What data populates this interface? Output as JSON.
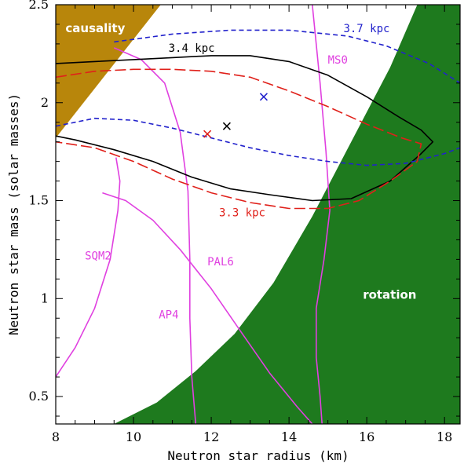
{
  "chart_data": {
    "type": "line",
    "title": "",
    "xlabel": "Neutron star radius (km)",
    "ylabel": "Neutron star mass (solar masses)",
    "xlim": [
      8,
      18.4
    ],
    "ylim": [
      0.36,
      2.5
    ],
    "xticks": [
      "8",
      "10",
      "12",
      "14",
      "16",
      "18"
    ],
    "yticks": [
      "0.5",
      "1",
      "1.5",
      "2",
      "2.5"
    ],
    "xtick_values": [
      8,
      10,
      12,
      14,
      16,
      18
    ],
    "ytick_values": [
      0.5,
      1,
      1.5,
      2,
      2.5
    ],
    "regions": [
      {
        "name": "causality",
        "color": "#b8860b",
        "polygon": [
          [
            8,
            1.82
          ],
          [
            10.7,
            2.5
          ],
          [
            8,
            2.5
          ]
        ]
      },
      {
        "name": "rotation",
        "color": "#1e7a1e",
        "polygon": [
          [
            9.5,
            0.36
          ],
          [
            10.6,
            0.47
          ],
          [
            11.6,
            0.63
          ],
          [
            12.6,
            0.82
          ],
          [
            13.6,
            1.08
          ],
          [
            14.6,
            1.42
          ],
          [
            15.6,
            1.8
          ],
          [
            16.6,
            2.18
          ],
          [
            17.3,
            2.5
          ],
          [
            18.4,
            2.5
          ],
          [
            18.4,
            0.36
          ]
        ]
      }
    ],
    "region_labels": [
      "causality",
      "rotation"
    ],
    "confidence_contours": [
      {
        "name": "3.4 kpc",
        "color": "#000000",
        "dash": "solid",
        "points": [
          [
            8,
            2.2
          ],
          [
            9,
            2.21
          ],
          [
            10,
            2.22
          ],
          [
            11,
            2.23
          ],
          [
            12,
            2.24
          ],
          [
            13,
            2.24
          ],
          [
            14,
            2.21
          ],
          [
            15,
            2.14
          ],
          [
            16,
            2.03
          ],
          [
            16.8,
            1.93
          ],
          [
            17.4,
            1.86
          ],
          [
            17.7,
            1.8
          ],
          [
            17.4,
            1.74
          ],
          [
            16.6,
            1.6
          ],
          [
            15.6,
            1.51
          ],
          [
            14.6,
            1.5
          ],
          [
            13.5,
            1.53
          ],
          [
            12.5,
            1.56
          ],
          [
            11.5,
            1.62
          ],
          [
            10.5,
            1.7
          ],
          [
            9.5,
            1.76
          ],
          [
            8.5,
            1.81
          ],
          [
            8,
            1.83
          ]
        ]
      },
      {
        "name": "3.3 kpc",
        "color": "#e0201a",
        "dash": "longdash",
        "points": [
          [
            8,
            2.13
          ],
          [
            9,
            2.16
          ],
          [
            10,
            2.17
          ],
          [
            11,
            2.17
          ],
          [
            12,
            2.16
          ],
          [
            13,
            2.13
          ],
          [
            14,
            2.06
          ],
          [
            15,
            1.98
          ],
          [
            16,
            1.89
          ],
          [
            16.9,
            1.82
          ],
          [
            17.4,
            1.79
          ],
          [
            17.3,
            1.7
          ],
          [
            16.6,
            1.6
          ],
          [
            15.8,
            1.5
          ],
          [
            15,
            1.46
          ],
          [
            14,
            1.46
          ],
          [
            13,
            1.49
          ],
          [
            12,
            1.54
          ],
          [
            11,
            1.61
          ],
          [
            10,
            1.7
          ],
          [
            9,
            1.77
          ],
          [
            8,
            1.8
          ]
        ]
      },
      {
        "name": "3.7 kpc",
        "color": "#2222cc",
        "dash": "shortdash",
        "points": [
          [
            9.5,
            2.31
          ],
          [
            11,
            2.35
          ],
          [
            12.5,
            2.37
          ],
          [
            14,
            2.37
          ],
          [
            15.5,
            2.34
          ],
          [
            16.5,
            2.29
          ],
          [
            17.6,
            2.2
          ],
          [
            18.4,
            2.1
          ],
          null,
          [
            8,
            1.88
          ],
          [
            9,
            1.92
          ],
          [
            10,
            1.91
          ],
          [
            11,
            1.87
          ],
          [
            12,
            1.82
          ],
          [
            13,
            1.77
          ],
          [
            14,
            1.73
          ],
          [
            15,
            1.7
          ],
          [
            16,
            1.68
          ],
          [
            17,
            1.69
          ],
          [
            18,
            1.74
          ],
          [
            18.4,
            1.77
          ]
        ]
      }
    ],
    "equations_of_state": [
      {
        "name": "SQM2",
        "color": "#e040e0",
        "points": [
          [
            8,
            0.6
          ],
          [
            8.5,
            0.75
          ],
          [
            9,
            0.95
          ],
          [
            9.4,
            1.2
          ],
          [
            9.6,
            1.45
          ],
          [
            9.65,
            1.6
          ],
          [
            9.55,
            1.72
          ]
        ]
      },
      {
        "name": "PAL6",
        "color": "#e040e0",
        "points": [
          [
            9.2,
            1.54
          ],
          [
            9.8,
            1.5
          ],
          [
            10.5,
            1.4
          ],
          [
            11.2,
            1.25
          ],
          [
            12,
            1.05
          ],
          [
            12.8,
            0.82
          ],
          [
            13.5,
            0.62
          ],
          [
            14.2,
            0.45
          ],
          [
            14.6,
            0.36
          ]
        ]
      },
      {
        "name": "AP4",
        "color": "#e040e0",
        "points": [
          [
            9.5,
            2.28
          ],
          [
            10.2,
            2.22
          ],
          [
            10.8,
            2.1
          ],
          [
            11.2,
            1.85
          ],
          [
            11.4,
            1.55
          ],
          [
            11.45,
            1.2
          ],
          [
            11.45,
            0.9
          ],
          [
            11.5,
            0.6
          ],
          [
            11.6,
            0.36
          ]
        ]
      },
      {
        "name": "MS0",
        "color": "#e040e0",
        "points": [
          [
            14.6,
            2.5
          ],
          [
            14.8,
            2.1
          ],
          [
            14.95,
            1.75
          ],
          [
            15.05,
            1.45
          ],
          [
            14.9,
            1.2
          ],
          [
            14.7,
            0.95
          ],
          [
            14.7,
            0.7
          ],
          [
            14.8,
            0.5
          ],
          [
            14.85,
            0.36
          ]
        ]
      }
    ],
    "best_fit_markers": [
      {
        "series": "3.3 kpc",
        "x": 11.9,
        "y": 1.84,
        "color": "#e0201a",
        "symbol": "x"
      },
      {
        "series": "3.4 kpc",
        "x": 12.4,
        "y": 1.88,
        "color": "#000000",
        "symbol": "x"
      },
      {
        "series": "3.7 kpc",
        "x": 13.35,
        "y": 2.03,
        "color": "#2222cc",
        "symbol": "x"
      }
    ],
    "grid": false,
    "legend": "none"
  },
  "annotations": [
    {
      "text": "3.7 kpc",
      "x": 15.4,
      "y": 2.36,
      "color": "#2222cc"
    },
    {
      "text": "3.4 kpc",
      "x": 10.9,
      "y": 2.26,
      "color": "#000000"
    },
    {
      "text": "3.3 kpc",
      "x": 12.2,
      "y": 1.42,
      "color": "#e0201a"
    },
    {
      "text": "MS0",
      "x": 15.0,
      "y": 2.2,
      "color": "#e040e0"
    },
    {
      "text": "SQM2",
      "x": 8.75,
      "y": 1.2,
      "color": "#e040e0"
    },
    {
      "text": "PAL6",
      "x": 11.9,
      "y": 1.17,
      "color": "#e040e0"
    },
    {
      "text": "AP4",
      "x": 10.65,
      "y": 0.9,
      "color": "#e040e0"
    },
    {
      "text": "causality",
      "x": 8.25,
      "y": 2.36,
      "color": "#ffffff"
    },
    {
      "text": "rotation",
      "x": 15.9,
      "y": 1.0,
      "color": "#ffffff"
    }
  ]
}
